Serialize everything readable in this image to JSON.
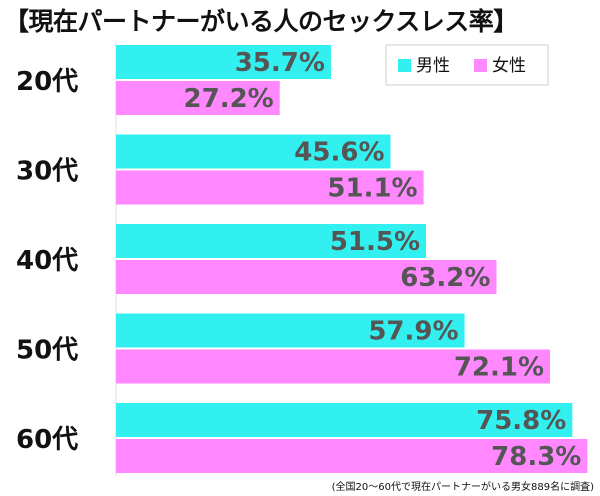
{
  "chart_data": {
    "type": "bar",
    "orientation": "horizontal",
    "title": "【現在パートナーがいる人のセックスレス率】",
    "categories": [
      "20代",
      "30代",
      "40代",
      "50代",
      "60代"
    ],
    "series": [
      {
        "name": "男性",
        "color": "#33f0f0",
        "values": [
          35.7,
          45.6,
          51.5,
          57.9,
          75.8
        ]
      },
      {
        "name": "女性",
        "color": "#ff88ff",
        "values": [
          27.2,
          51.1,
          63.2,
          72.1,
          78.3
        ]
      }
    ],
    "value_labels": [
      [
        "35.7%",
        "45.6%",
        "51.5%",
        "57.9%",
        "75.8%"
      ],
      [
        "27.2%",
        "51.1%",
        "63.2%",
        "72.1%",
        "78.3%"
      ]
    ],
    "xlim": [
      0,
      100
    ],
    "grid": false,
    "legend_position": "top-right",
    "note": "(全国20〜60代で現在パートナーがいる男女889名に調査)"
  }
}
